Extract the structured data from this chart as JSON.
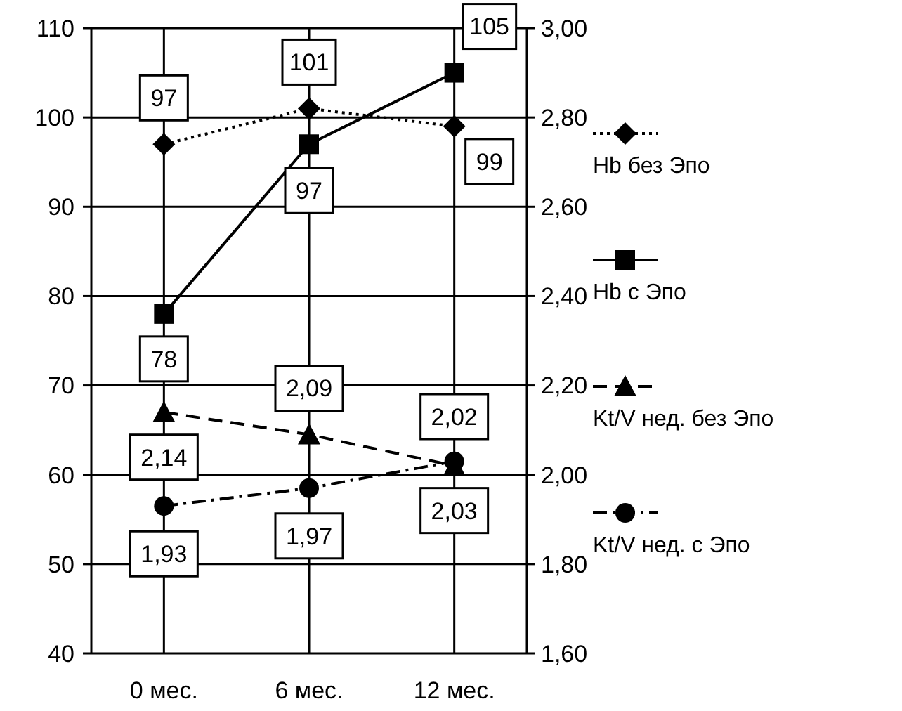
{
  "chart_data": {
    "type": "line",
    "categories": [
      "0 мес.",
      "6 мес.",
      "12 мес."
    ],
    "ylim": [
      40,
      110
    ],
    "yticks": [
      40,
      50,
      60,
      70,
      80,
      90,
      100,
      110
    ],
    "y2lim": [
      1.6,
      3.0
    ],
    "y2ticks": [
      {
        "value": 1.6,
        "label": "1,60"
      },
      {
        "value": 1.8,
        "label": "1,80"
      },
      {
        "value": 2.0,
        "label": "2,00"
      },
      {
        "value": 2.2,
        "label": "2,20"
      },
      {
        "value": 2.4,
        "label": "2,40"
      },
      {
        "value": 2.6,
        "label": "2,60"
      },
      {
        "value": 2.8,
        "label": "2,80"
      },
      {
        "value": 3.0,
        "label": "3,00"
      }
    ],
    "grid": true,
    "legend": "right",
    "series": [
      {
        "name": "Hb без Эпо",
        "color": "#000000",
        "values": [
          97,
          101,
          99
        ],
        "value_labels": [
          "97",
          "101",
          "99"
        ],
        "marker": "diamond",
        "line_style": "dotted"
      },
      {
        "name": "Hb с Эпо",
        "color": "#000000",
        "values": [
          78,
          97,
          105
        ],
        "value_labels": [
          "78",
          "97",
          "105"
        ],
        "marker": "square",
        "line_style": "solid"
      },
      {
        "name": "Kt/V нед. без Эпо",
        "color": "#000000",
        "values": [
          2.14,
          2.09,
          2.02
        ],
        "value_labels": [
          "2,14",
          "2,09",
          "2,02"
        ],
        "marker": "triangle",
        "line_style": "dashed",
        "axis": "y2"
      },
      {
        "name": "Kt/V нед. с Эпо",
        "color": "#000000",
        "values": [
          1.93,
          1.97,
          2.03
        ],
        "value_labels": [
          "1,93",
          "1,97",
          "2,03"
        ],
        "marker": "circle",
        "line_style": "dashdot",
        "axis": "y2"
      }
    ]
  }
}
